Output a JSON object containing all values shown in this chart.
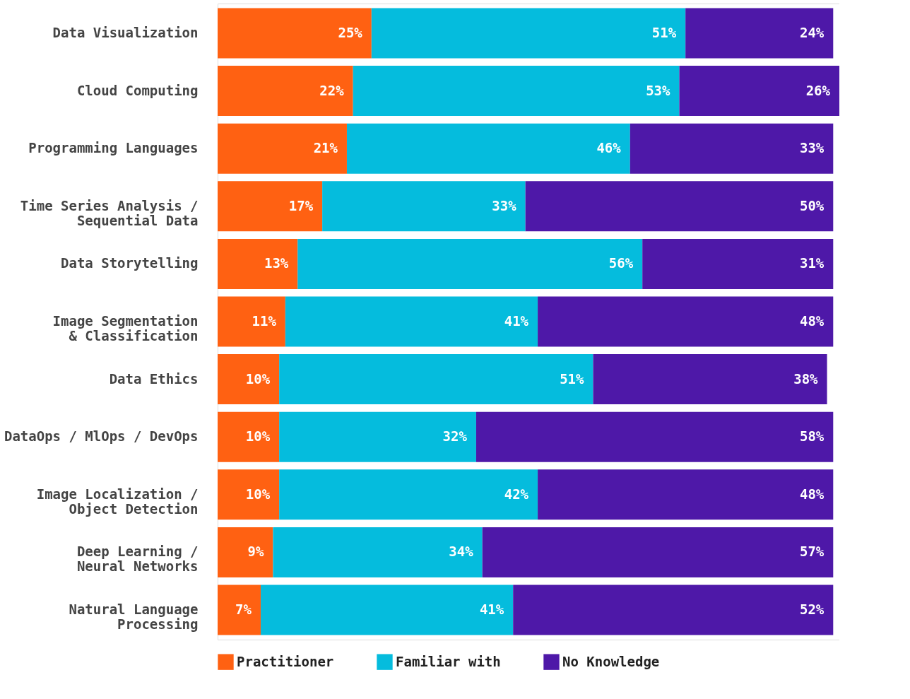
{
  "chart_data": {
    "type": "bar",
    "orientation": "horizontal",
    "stacked": true,
    "legend": "bottom",
    "grid": false,
    "categories": [
      "Data Visualization",
      "Cloud Computing",
      "Programming Languages",
      "Time Series Analysis /\nSequential Data",
      "Data Storytelling",
      "Image Segmentation\n& Classification",
      "Data Ethics",
      "DataOps / MlOps / DevOps",
      "Image Localization /\nObject Detection",
      "Deep Learning /\nNeural Networks",
      "Natural Language\nProcessing"
    ],
    "series": [
      {
        "name": "Practitioner",
        "color": "#ff6112",
        "values": [
          25,
          22,
          21,
          17,
          13,
          11,
          10,
          10,
          10,
          9,
          7
        ],
        "value_labels": [
          "25%",
          "22%",
          "21%",
          "17%",
          "13%",
          "11%",
          "10%",
          "10%",
          "10%",
          "9%",
          "7%"
        ]
      },
      {
        "name": "Familiar with",
        "color": "#05bcdd",
        "values": [
          51,
          53,
          46,
          33,
          56,
          41,
          51,
          32,
          42,
          34,
          41
        ],
        "value_labels": [
          "51%",
          "53%",
          "46%",
          "33%",
          "56%",
          "41%",
          "51%",
          "32%",
          "42%",
          "34%",
          "41%"
        ]
      },
      {
        "name": "No Knowledge",
        "color": "#4e18a8",
        "values": [
          24,
          26,
          33,
          50,
          31,
          48,
          38,
          58,
          48,
          57,
          52
        ],
        "value_labels": [
          "24%",
          "26%",
          "33%",
          "50%",
          "31%",
          "48%",
          "38%",
          "58%",
          "48%",
          "57%",
          "52%"
        ]
      }
    ]
  }
}
